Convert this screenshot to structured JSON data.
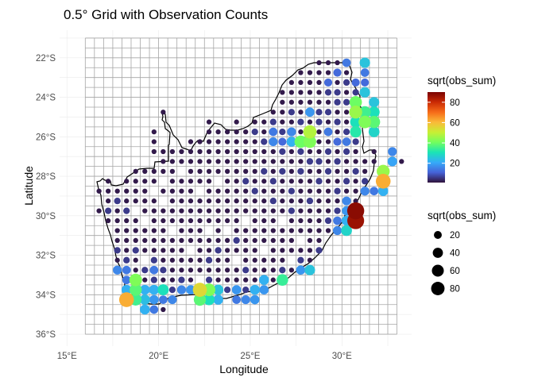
{
  "chart_data": {
    "type": "scatter",
    "title": "0.5° Grid with Observation Counts",
    "xlabel": "Longitude",
    "ylabel": "Latitude",
    "x_ticks": [
      {
        "value": 15,
        "label": "15°E"
      },
      {
        "value": 20,
        "label": "20°E"
      },
      {
        "value": 25,
        "label": "25°E"
      },
      {
        "value": 30,
        "label": "30°E"
      }
    ],
    "y_ticks": [
      {
        "value": -22,
        "label": "22°S"
      },
      {
        "value": -24,
        "label": "24°S"
      },
      {
        "value": -26,
        "label": "26°S"
      },
      {
        "value": -28,
        "label": "28°S"
      },
      {
        "value": -30,
        "label": "30°S"
      },
      {
        "value": -32,
        "label": "32°S"
      },
      {
        "value": -34,
        "label": "34°S"
      },
      {
        "value": -36,
        "label": "36°S"
      }
    ],
    "xlim": [
      14.6,
      33.8
    ],
    "ylim": [
      -36.6,
      -20.6
    ],
    "grid": {
      "spacing_deg": 0.5,
      "lon_range": [
        16.0,
        33.0
      ],
      "lat_range": [
        -36.0,
        -21.0
      ]
    },
    "colour_legend": {
      "title": "sqrt(obs_sum)",
      "range": [
        1,
        90
      ],
      "ticks": [
        20,
        40,
        60,
        80
      ],
      "palette": [
        "#30123b",
        "#4662d7",
        "#36aaf9",
        "#1ae4b6",
        "#72fe5e",
        "#c8ef34",
        "#faba39",
        "#f66b19",
        "#ca2a04",
        "#7a0403"
      ]
    },
    "size_legend": {
      "title": "sqrt(obs_sum)",
      "values": [
        20,
        40,
        60,
        80
      ]
    },
    "outline_colour": "#000000",
    "grid_colour": "#a6a6a6",
    "base_value": 2,
    "medium_value": 6,
    "sparse_cells": [
      [
        22.75,
        -25.25
      ],
      [
        24.25,
        -25.25
      ],
      [
        19.75,
        -25.75
      ],
      [
        19.75,
        -26.25
      ],
      [
        19.75,
        -26.75
      ],
      [
        20.25,
        -26.75
      ],
      [
        21.75,
        -26.25
      ],
      [
        22.25,
        -26.25
      ],
      [
        22.75,
        -26.25
      ],
      [
        20.75,
        -27.25
      ],
      [
        22.75,
        -27.25
      ],
      [
        23.75,
        -27.25
      ],
      [
        26.25,
        -27.25
      ],
      [
        16.75,
        -28.75
      ],
      [
        17.25,
        -28.25
      ],
      [
        17.25,
        -28.75
      ],
      [
        33.25,
        -27.25
      ],
      [
        17.75,
        -30.75
      ],
      [
        18.25,
        -31.25
      ],
      [
        16.75,
        -29.75
      ],
      [
        19.25,
        -33.75
      ],
      [
        20.25,
        -34.75
      ],
      [
        23.25,
        -29.75
      ],
      [
        21.25,
        -30.25
      ],
      [
        24.25,
        -26.25
      ]
    ],
    "missing_cells": [
      [
        20.25,
        -26.25
      ],
      [
        20.75,
        -26.25
      ],
      [
        21.25,
        -26.25
      ],
      [
        20.25,
        -25.75
      ],
      [
        21.25,
        -25.75
      ],
      [
        22.75,
        -30.75
      ],
      [
        23.75,
        -30.75
      ],
      [
        19.25,
        -30.25
      ],
      [
        20.75,
        -30.75
      ],
      [
        22.25,
        -28.75
      ],
      [
        21.25,
        -27.75
      ],
      [
        20.25,
        -28.25
      ],
      [
        23.25,
        -28.25
      ],
      [
        24.75,
        -30.25
      ],
      [
        19.75,
        -28.75
      ],
      [
        18.75,
        -29.75
      ],
      [
        20.25,
        -29.25
      ],
      [
        21.75,
        -31.75
      ],
      [
        22.25,
        -33.25
      ],
      [
        24.25,
        -32.25
      ],
      [
        25.75,
        -31.75
      ],
      [
        27.75,
        -31.25
      ],
      [
        26.75,
        -30.25
      ],
      [
        27.25,
        -32.25
      ],
      [
        19.25,
        -32.25
      ]
    ],
    "medium_cells": [
      [
        29.25,
        -23.75
      ],
      [
        29.75,
        -23.75
      ],
      [
        30.25,
        -23.25
      ],
      [
        30.75,
        -23.75
      ],
      [
        30.25,
        -24.25
      ],
      [
        29.25,
        -24.75
      ],
      [
        29.75,
        -25.25
      ],
      [
        30.25,
        -25.75
      ],
      [
        28.75,
        -25.25
      ],
      [
        27.75,
        -25.25
      ],
      [
        27.25,
        -25.75
      ],
      [
        26.75,
        -25.75
      ],
      [
        27.75,
        -26.25
      ],
      [
        26.75,
        -26.75
      ],
      [
        27.75,
        -26.75
      ],
      [
        29.75,
        -26.25
      ],
      [
        30.25,
        -26.75
      ],
      [
        29.25,
        -26.75
      ],
      [
        28.25,
        -27.25
      ],
      [
        29.75,
        -27.25
      ],
      [
        30.75,
        -27.75
      ],
      [
        31.25,
        -28.25
      ],
      [
        30.25,
        -28.25
      ],
      [
        29.25,
        -27.75
      ],
      [
        29.75,
        -28.75
      ],
      [
        30.25,
        -29.25
      ],
      [
        29.75,
        -29.75
      ],
      [
        29.25,
        -30.25
      ],
      [
        30.25,
        -30.75
      ],
      [
        29.75,
        -31.25
      ],
      [
        28.75,
        -31.75
      ],
      [
        29.25,
        -31.25
      ],
      [
        27.75,
        -32.25
      ],
      [
        28.25,
        -32.75
      ],
      [
        27.25,
        -33.25
      ],
      [
        26.25,
        -33.75
      ],
      [
        25.75,
        -33.75
      ],
      [
        26.75,
        -32.75
      ],
      [
        24.75,
        -33.75
      ],
      [
        23.75,
        -33.75
      ],
      [
        22.75,
        -33.25
      ],
      [
        20.75,
        -33.75
      ],
      [
        19.75,
        -33.25
      ],
      [
        20.25,
        -34.25
      ],
      [
        21.25,
        -34.25
      ],
      [
        21.75,
        -34.25
      ],
      [
        18.75,
        -33.25
      ],
      [
        19.25,
        -32.75
      ],
      [
        18.25,
        -32.25
      ],
      [
        17.75,
        -31.75
      ],
      [
        18.75,
        -31.75
      ],
      [
        19.75,
        -32.25
      ],
      [
        26.25,
        -29.25
      ],
      [
        25.25,
        -28.75
      ],
      [
        24.75,
        -28.25
      ],
      [
        25.75,
        -27.75
      ],
      [
        26.25,
        -28.25
      ],
      [
        27.25,
        -28.75
      ],
      [
        28.25,
        -29.25
      ],
      [
        27.25,
        -29.75
      ],
      [
        28.75,
        -28.25
      ],
      [
        27.75,
        -27.75
      ],
      [
        28.75,
        -27.25
      ],
      [
        26.75,
        -27.75
      ],
      [
        25.75,
        -26.25
      ],
      [
        26.25,
        -25.25
      ],
      [
        25.25,
        -25.75
      ],
      [
        31.25,
        -25.75
      ],
      [
        31.25,
        -24.25
      ],
      [
        29.75,
        -24.25
      ],
      [
        28.75,
        -24.75
      ],
      [
        30.75,
        -26.25
      ],
      [
        30.75,
        -25.25
      ],
      [
        27.25,
        -24.75
      ],
      [
        24.75,
        -32.75
      ],
      [
        22.75,
        -32.25
      ],
      [
        20.25,
        -32.75
      ],
      [
        22.25,
        -34.25
      ],
      [
        18.25,
        -29.75
      ],
      [
        17.25,
        -29.75
      ],
      [
        17.75,
        -29.25
      ],
      [
        24.25,
        -31.25
      ],
      [
        23.25,
        -31.75
      ],
      [
        21.25,
        -33.25
      ]
    ],
    "points": [
      {
        "x": 29.75,
        "y": -26.25,
        "v": 12
      },
      {
        "x": 30.25,
        "y": -26.25,
        "v": 14
      },
      {
        "x": 29.25,
        "y": -25.75,
        "v": 14
      },
      {
        "x": 27.25,
        "y": -25.75,
        "v": 16
      },
      {
        "x": 26.75,
        "y": -26.25,
        "v": 12
      },
      {
        "x": 29.75,
        "y": -22.75,
        "v": 12
      },
      {
        "x": 30.25,
        "y": -22.25,
        "v": 14
      },
      {
        "x": 31.25,
        "y": -22.75,
        "v": 14
      },
      {
        "x": 30.75,
        "y": -23.25,
        "v": 12
      },
      {
        "x": 29.25,
        "y": -23.25,
        "v": 12
      },
      {
        "x": 31.25,
        "y": -23.25,
        "v": 12
      },
      {
        "x": 31.25,
        "y": -22.25,
        "v": 25
      },
      {
        "x": 31.25,
        "y": -23.75,
        "v": 25
      },
      {
        "x": 31.75,
        "y": -24.25,
        "v": 25
      },
      {
        "x": 31.75,
        "y": -24.75,
        "v": 30
      },
      {
        "x": 31.25,
        "y": -24.75,
        "v": 35
      },
      {
        "x": 30.75,
        "y": -24.25,
        "v": 40
      },
      {
        "x": 30.75,
        "y": -24.75,
        "v": 45
      },
      {
        "x": 30.75,
        "y": -25.25,
        "v": 30
      },
      {
        "x": 31.25,
        "y": -25.25,
        "v": 42
      },
      {
        "x": 31.75,
        "y": -25.25,
        "v": 38
      },
      {
        "x": 30.75,
        "y": -25.75,
        "v": 32
      },
      {
        "x": 31.75,
        "y": -25.75,
        "v": 28
      },
      {
        "x": 28.25,
        "y": -25.75,
        "v": 48
      },
      {
        "x": 28.25,
        "y": -26.25,
        "v": 42
      },
      {
        "x": 27.75,
        "y": -26.25,
        "v": 40
      },
      {
        "x": 27.25,
        "y": -26.25,
        "v": 22
      },
      {
        "x": 28.25,
        "y": -24.75,
        "v": 18
      },
      {
        "x": 26.25,
        "y": -25.75,
        "v": 14
      },
      {
        "x": 26.25,
        "y": -26.25,
        "v": 16
      },
      {
        "x": 32.25,
        "y": -28.25,
        "v": 62
      },
      {
        "x": 32.25,
        "y": -27.75,
        "v": 45
      },
      {
        "x": 32.25,
        "y": -28.75,
        "v": 22
      },
      {
        "x": 32.75,
        "y": -27.25,
        "v": 20
      },
      {
        "x": 32.75,
        "y": -26.75,
        "v": 16
      },
      {
        "x": 31.75,
        "y": -28.75,
        "v": 14
      },
      {
        "x": 30.75,
        "y": -29.75,
        "v": 88
      },
      {
        "x": 30.75,
        "y": -30.25,
        "v": 86
      },
      {
        "x": 30.25,
        "y": -29.75,
        "v": 18
      },
      {
        "x": 30.25,
        "y": -30.25,
        "v": 22
      },
      {
        "x": 30.25,
        "y": -29.25,
        "v": 16
      },
      {
        "x": 29.75,
        "y": -30.25,
        "v": 14
      },
      {
        "x": 30.25,
        "y": -30.75,
        "v": 28
      },
      {
        "x": 29.75,
        "y": -30.75,
        "v": 16
      },
      {
        "x": 31.25,
        "y": -28.75,
        "v": 16
      },
      {
        "x": 28.25,
        "y": -32.75,
        "v": 25
      },
      {
        "x": 27.75,
        "y": -32.75,
        "v": 18
      },
      {
        "x": 26.75,
        "y": -33.25,
        "v": 34
      },
      {
        "x": 25.75,
        "y": -33.25,
        "v": 22
      },
      {
        "x": 25.25,
        "y": -33.75,
        "v": 22
      },
      {
        "x": 24.25,
        "y": -33.75,
        "v": 18
      },
      {
        "x": 23.25,
        "y": -33.75,
        "v": 25
      },
      {
        "x": 22.75,
        "y": -33.75,
        "v": 42
      },
      {
        "x": 22.25,
        "y": -33.75,
        "v": 55
      },
      {
        "x": 21.75,
        "y": -33.75,
        "v": 18
      },
      {
        "x": 21.25,
        "y": -33.75,
        "v": 16
      },
      {
        "x": 20.25,
        "y": -33.75,
        "v": 30
      },
      {
        "x": 19.75,
        "y": -33.75,
        "v": 22
      },
      {
        "x": 19.25,
        "y": -33.75,
        "v": 22
      },
      {
        "x": 18.75,
        "y": -33.75,
        "v": 38
      },
      {
        "x": 18.75,
        "y": -33.25,
        "v": 42
      },
      {
        "x": 18.75,
        "y": -34.25,
        "v": 35
      },
      {
        "x": 19.25,
        "y": -34.25,
        "v": 24
      },
      {
        "x": 19.75,
        "y": -34.25,
        "v": 18
      },
      {
        "x": 20.25,
        "y": -34.25,
        "v": 14
      },
      {
        "x": 20.75,
        "y": -34.25,
        "v": 16
      },
      {
        "x": 22.25,
        "y": -34.25,
        "v": 38
      },
      {
        "x": 22.75,
        "y": -34.25,
        "v": 30
      },
      {
        "x": 23.25,
        "y": -34.25,
        "v": 22
      },
      {
        "x": 24.25,
        "y": -34.25,
        "v": 14
      },
      {
        "x": 25.25,
        "y": -34.25,
        "v": 18
      },
      {
        "x": 18.25,
        "y": -34.25,
        "v": 62
      },
      {
        "x": 18.25,
        "y": -33.75,
        "v": 22
      },
      {
        "x": 18.25,
        "y": -33.25,
        "v": 14
      },
      {
        "x": 17.75,
        "y": -32.75,
        "v": 16
      },
      {
        "x": 19.25,
        "y": -34.75,
        "v": 22
      },
      {
        "x": 19.75,
        "y": -34.75,
        "v": 14
      },
      {
        "x": 25.75,
        "y": -33.75,
        "v": 18
      },
      {
        "x": 24.75,
        "y": -34.25,
        "v": 16
      },
      {
        "x": 19.75,
        "y": -32.75,
        "v": 14
      },
      {
        "x": 18.25,
        "y": -32.75,
        "v": 14
      }
    ]
  }
}
